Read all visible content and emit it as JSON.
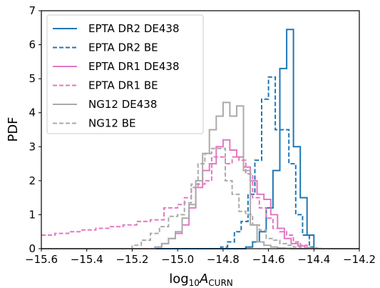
{
  "chart_data": {
    "type": "histogram-step",
    "xlabel_base": "log",
    "xlabel_sub": "10",
    "xlabel_var": "A",
    "xlabel_varsub": "CURN",
    "ylabel": "PDF",
    "xlim": [
      -15.6,
      -14.2
    ],
    "ylim": [
      0,
      7
    ],
    "xticks": [
      -15.6,
      -15.4,
      -15.2,
      -15.0,
      -14.8,
      -14.6,
      -14.4,
      -14.2
    ],
    "xtick_labels": [
      "−15.6",
      "−15.4",
      "−15.2",
      "−15.0",
      "−14.8",
      "−14.6",
      "−14.4",
      "−14.2"
    ],
    "yticks": [
      0,
      1,
      2,
      3,
      4,
      5,
      6,
      7
    ],
    "ytick_labels": [
      "0",
      "1",
      "2",
      "3",
      "4",
      "5",
      "6",
      "7"
    ],
    "grid": false,
    "legend_position": "top-left",
    "series": [
      {
        "name": "EPTA DR2 DE438",
        "color": "#1f77b4",
        "dashed": false,
        "edges": [
          -15.6,
          -14.7,
          -14.67,
          -14.64,
          -14.61,
          -14.58,
          -14.55,
          -14.52,
          -14.49,
          -14.46,
          -14.43,
          -14.4,
          -14.2
        ],
        "values": [
          0,
          0.05,
          0.2,
          0.5,
          1.2,
          2.3,
          5.3,
          6.45,
          3.0,
          1.5,
          0.4,
          0
        ]
      },
      {
        "name": "EPTA DR2 BE",
        "color": "#1f77b4",
        "dashed": true,
        "edges": [
          -15.6,
          -14.81,
          -14.78,
          -14.75,
          -14.72,
          -14.69,
          -14.66,
          -14.63,
          -14.6,
          -14.57,
          -14.54,
          -14.51,
          -14.48,
          -14.45,
          -14.42,
          -14.39,
          -14.2
        ],
        "values": [
          0,
          0.05,
          0.2,
          0.5,
          0.8,
          1.6,
          2.6,
          4.4,
          5.05,
          3.5,
          3.5,
          2.5,
          1.0,
          0.4,
          0.05,
          0
        ]
      },
      {
        "name": "EPTA DR1 DE438",
        "color": "#e377c2",
        "dashed": false,
        "edges": [
          -15.6,
          -15.1,
          -15.07,
          -15.04,
          -15.01,
          -14.98,
          -14.95,
          -14.92,
          -14.89,
          -14.86,
          -14.83,
          -14.8,
          -14.77,
          -14.74,
          -14.71,
          -14.68,
          -14.65,
          -14.62,
          -14.59,
          -14.56,
          -14.53,
          -14.5,
          -14.47,
          -14.44,
          -14.41,
          -14.38,
          -14.2
        ],
        "values": [
          0,
          0.05,
          0.15,
          0.3,
          0.45,
          0.7,
          1.2,
          1.8,
          2.3,
          2.5,
          3.0,
          3.2,
          2.9,
          2.7,
          2.4,
          2.0,
          1.6,
          1.45,
          1.0,
          0.6,
          0.3,
          0.15,
          0.08,
          0.03,
          0.01,
          0
        ]
      },
      {
        "name": "EPTA DR1 BE",
        "color": "#e377c2",
        "dashed": true,
        "edges": [
          -15.6,
          -15.54,
          -15.48,
          -15.42,
          -15.36,
          -15.3,
          -15.24,
          -15.18,
          -15.12,
          -15.06,
          -15.0,
          -14.97,
          -14.94,
          -14.91,
          -14.88,
          -14.85,
          -14.82,
          -14.79,
          -14.76,
          -14.73,
          -14.7,
          -14.67,
          -14.64,
          -14.61,
          -14.58,
          -14.55,
          -14.52,
          -14.49,
          -14.46,
          -14.43,
          -14.4,
          -14.37,
          -14.2
        ],
        "values": [
          0.4,
          0.45,
          0.5,
          0.55,
          0.6,
          0.65,
          0.7,
          0.8,
          0.85,
          1.2,
          1.3,
          1.5,
          1.8,
          1.9,
          2.0,
          2.7,
          2.7,
          2.5,
          2.7,
          2.6,
          2.2,
          1.5,
          1.2,
          0.9,
          0.6,
          0.5,
          0.4,
          0.2,
          0.1,
          0.02,
          0.01,
          0
        ]
      },
      {
        "name": "NG12 DE438",
        "color": "#aaaaaa",
        "dashed": false,
        "edges": [
          -15.6,
          -15.1,
          -15.07,
          -15.04,
          -15.01,
          -14.98,
          -14.95,
          -14.92,
          -14.89,
          -14.86,
          -14.83,
          -14.8,
          -14.77,
          -14.74,
          -14.71,
          -14.68,
          -14.65,
          -14.62,
          -14.59,
          -14.56,
          -14.53,
          -14.5,
          -14.2
        ],
        "values": [
          0,
          0.05,
          0.15,
          0.3,
          0.5,
          0.9,
          1.3,
          2.0,
          2.8,
          3.5,
          3.9,
          4.3,
          3.9,
          4.2,
          2.3,
          0.7,
          0.2,
          0.1,
          0.05,
          0.02,
          0.01,
          0
        ]
      },
      {
        "name": "NG12 BE",
        "color": "#aaaaaa",
        "dashed": true,
        "edges": [
          -15.6,
          -15.2,
          -15.16,
          -15.12,
          -15.08,
          -15.04,
          -15.0,
          -14.97,
          -14.94,
          -14.91,
          -14.88,
          -14.85,
          -14.82,
          -14.79,
          -14.76,
          -14.73,
          -14.7,
          -14.67,
          -14.64,
          -14.61,
          -14.58,
          -14.55,
          -14.52,
          -14.49,
          -14.46,
          -14.43,
          -14.4,
          -14.2
        ],
        "values": [
          0,
          0.1,
          0.25,
          0.45,
          0.65,
          0.95,
          1.0,
          1.35,
          1.9,
          2.5,
          2.8,
          2.95,
          2.95,
          2.0,
          1.6,
          1.1,
          1.0,
          0.7,
          0.55,
          0.3,
          0.25,
          0.15,
          0.1,
          0.05,
          0.02,
          0.01,
          0
        ]
      }
    ]
  }
}
